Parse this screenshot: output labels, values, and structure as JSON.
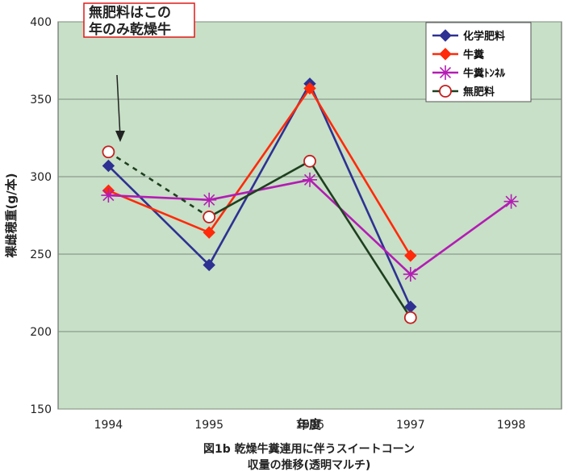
{
  "chart_data": {
    "type": "line",
    "categories": [
      "1994",
      "1995",
      "1996",
      "1997",
      "1998"
    ],
    "ylabel": "裸雌穂重(g/本)",
    "xlabel": "年度",
    "ylim": [
      150,
      400
    ],
    "yticks": [
      "150",
      "200",
      "250",
      "300",
      "350",
      "400"
    ],
    "grid": "horizontal",
    "legend_position": "top-right",
    "series": [
      {
        "name": "化学肥料",
        "color": "#2e3192",
        "marker": "diamond",
        "values": [
          307,
          243,
          360,
          216,
          null
        ]
      },
      {
        "name": "牛糞",
        "color": "#ff2a0a",
        "marker": "diamond",
        "values": [
          291,
          264,
          357,
          249,
          null
        ]
      },
      {
        "name": "牛糞ﾄﾝﾈﾙ",
        "color": "#b41cb4",
        "marker": "asterisk",
        "values": [
          288,
          285,
          298,
          237,
          284
        ]
      },
      {
        "name": "無肥料",
        "color": "#1f4020",
        "marker": "open-circle",
        "values": [
          316,
          274,
          310,
          209,
          null
        ],
        "dashed_segments": [
          0
        ]
      }
    ],
    "annotation": {
      "lines": [
        "無肥料はこの",
        "年のみ乾燥牛"
      ],
      "arrow_to_category": "1994"
    },
    "caption": [
      "図1b  乾燥牛糞連用に伴うスイートコーン",
      "収量の推移(透明マルチ)"
    ]
  },
  "colors": {
    "plot_background": "#c7e0c7",
    "gridline": "#7e8a7e",
    "annotation_border": "#e01818"
  }
}
